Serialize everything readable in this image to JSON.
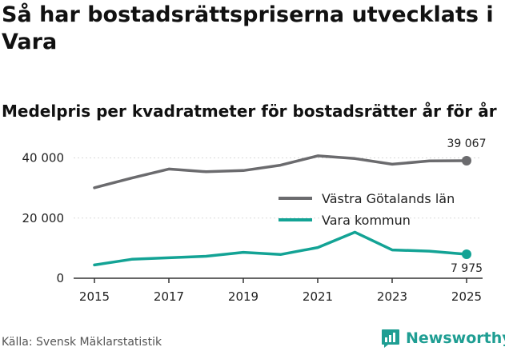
{
  "header": {
    "title": "Så har bostadsrättspriserna utvecklats i Vara",
    "subtitle": "Medelpris per kvadratmeter för bostadsrätter år för år"
  },
  "footer": {
    "source": "Källa: Svensk Mäklarstatistik",
    "brand": "Newsworthy"
  },
  "colors": {
    "region": "#6b6b6e",
    "kommun": "#13a395",
    "axis": "#333333",
    "grid": "#d9d9d9"
  },
  "chart_data": {
    "type": "line",
    "title": "Så har bostadsrättspriserna utvecklats i Vara",
    "subtitle": "Medelpris per kvadratmeter för bostadsrätter år för år",
    "xlabel": "",
    "ylabel": "",
    "x": [
      2015,
      2016,
      2017,
      2018,
      2019,
      2020,
      2021,
      2022,
      2023,
      2024,
      2025
    ],
    "x_ticks": [
      2015,
      2017,
      2019,
      2021,
      2023,
      2025
    ],
    "xlim": [
      2015,
      2025
    ],
    "ylim": [
      0,
      42000
    ],
    "y_ticks": [
      0,
      20000,
      40000
    ],
    "y_tick_labels": [
      "0",
      "20 000",
      "40 000"
    ],
    "grid": true,
    "legend_position": "right",
    "series": [
      {
        "name": "Västra Götalands län",
        "color_key": "region",
        "values": [
          30100,
          33300,
          36300,
          35400,
          35800,
          37600,
          40700,
          39800,
          37900,
          39000,
          39067
        ],
        "end_label": "39 067"
      },
      {
        "name": "Vara kommun",
        "color_key": "kommun",
        "values": [
          4400,
          6300,
          6800,
          7300,
          8600,
          7900,
          10200,
          15300,
          9400,
          9000,
          7975
        ],
        "end_label": "7 975"
      }
    ]
  }
}
